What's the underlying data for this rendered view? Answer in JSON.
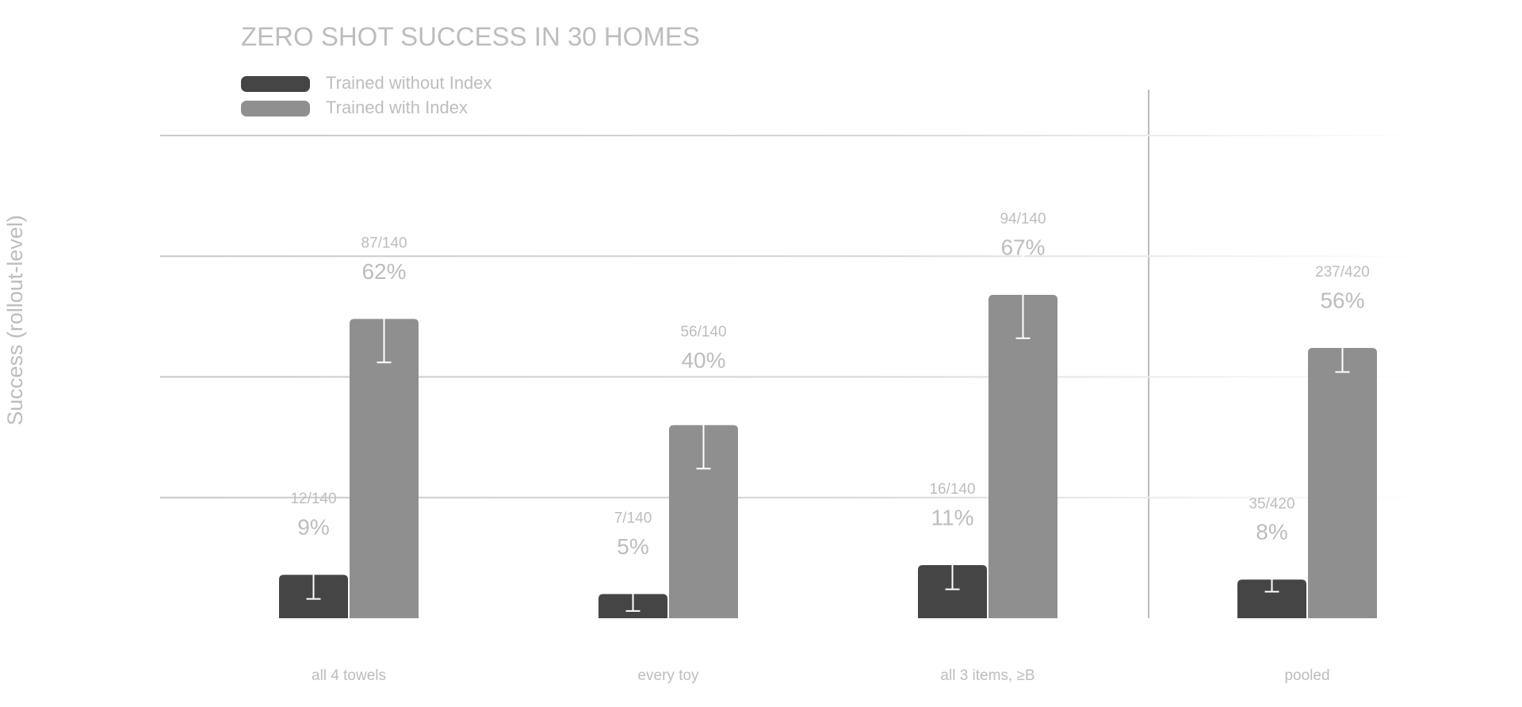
{
  "chart_data": {
    "type": "bar",
    "title": "ZERO SHOT SUCCESS IN 30 HOMES",
    "y_label": "Success (rollout-level)",
    "categories": [
      "all 4 towels",
      "every toy",
      "all 3 items, ≥B",
      "pooled"
    ],
    "series": [
      {
        "name": "Trained without Index",
        "color": "#454545",
        "values": [
          9,
          5,
          11,
          8
        ],
        "value_labels": [
          "9%",
          "5%",
          "11%",
          "8%"
        ],
        "counts": [
          "12/140",
          "7/140",
          "16/140",
          "35/420"
        ],
        "errors": [
          5,
          3.5,
          5,
          2.5
        ]
      },
      {
        "name": "Trained with Index",
        "color": "#8f8f8f",
        "values": [
          62,
          40,
          67,
          56
        ],
        "value_labels": [
          "62%",
          "40%",
          "67%",
          "56%"
        ],
        "counts": [
          "87/140",
          "56/140",
          "94/140",
          "237/420"
        ],
        "errors": [
          9,
          9,
          9,
          5
        ]
      }
    ],
    "ylim": [
      0,
      100
    ],
    "yticks": [
      25,
      50,
      75,
      100
    ],
    "grid": true,
    "legend": "top-left"
  }
}
